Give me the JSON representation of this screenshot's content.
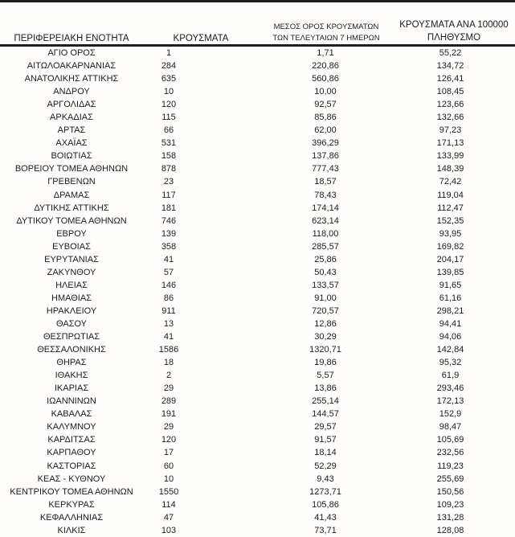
{
  "page": {
    "background_color": "#ffffff",
    "text_color": "#1b1b1b",
    "rule_color": "#1f1f1f"
  },
  "table": {
    "headers": {
      "region": "ΠΕΡΙΦΕΡΕΙΑΚΗ ΕΝΟΤΗΤΑ",
      "cases": "ΚΡΟΥΣΜΑΤΑ",
      "avg7_line1": "ΜΕΣΟΣ ΟΡΟΣ ΚΡΟΥΣΜΑΤΩΝ",
      "avg7_line2": "ΤΩΝ ΤΕΛΕΥΤΑΙΩΝ 7 ΗΜΕΡΩΝ",
      "per100k_line1": "ΚΡΟΥΣΜΑΤΑ ΑΝΑ 100000",
      "per100k_line2": "ΠΛΗΘΥΣΜΟ"
    },
    "rows": [
      {
        "region": "ΑΓΙΟ ΟΡΟΣ",
        "cases": "1",
        "avg7": "1,71",
        "per100k": "55,22"
      },
      {
        "region": "ΑΙΤΩΛΟΑΚΑΡΝΑΝΙΑΣ",
        "cases": "284",
        "avg7": "220,86",
        "per100k": "134,72"
      },
      {
        "region": "ΑΝΑΤΟΛΙΚΗΣ ΑΤΤΙΚΗΣ",
        "cases": "635",
        "avg7": "560,86",
        "per100k": "126,41"
      },
      {
        "region": "ΑΝΔΡΟΥ",
        "cases": "10",
        "avg7": "10,00",
        "per100k": "108,45"
      },
      {
        "region": "ΑΡΓΟΛΙΔΑΣ",
        "cases": "120",
        "avg7": "92,57",
        "per100k": "123,66"
      },
      {
        "region": "ΑΡΚΑΔΙΑΣ",
        "cases": "115",
        "avg7": "85,86",
        "per100k": "132,66"
      },
      {
        "region": "ΑΡΤΑΣ",
        "cases": "66",
        "avg7": "62,00",
        "per100k": "97,23"
      },
      {
        "region": "ΑΧΑΪΑΣ",
        "cases": "531",
        "avg7": "396,29",
        "per100k": "171,13"
      },
      {
        "region": "ΒΟΙΩΤΙΑΣ",
        "cases": "158",
        "avg7": "137,86",
        "per100k": "133,99"
      },
      {
        "region": "ΒΟΡΕΙΟΥ ΤΟΜΕΑ ΑΘΗΝΩΝ",
        "cases": "878",
        "avg7": "777,43",
        "per100k": "148,39"
      },
      {
        "region": "ΓΡΕΒΕΝΩΝ",
        "cases": "23",
        "avg7": "18,57",
        "per100k": "72,42"
      },
      {
        "region": "ΔΡΑΜΑΣ",
        "cases": "117",
        "avg7": "78,43",
        "per100k": "119,04"
      },
      {
        "region": "ΔΥΤΙΚΗΣ ΑΤΤΙΚΗΣ",
        "cases": "181",
        "avg7": "174,14",
        "per100k": "112,47"
      },
      {
        "region": "ΔΥΤΙΚΟΥ ΤΟΜΕΑ ΑΘΗΝΩΝ",
        "cases": "746",
        "avg7": "623,14",
        "per100k": "152,35"
      },
      {
        "region": "ΕΒΡΟΥ",
        "cases": "139",
        "avg7": "118,00",
        "per100k": "93,95"
      },
      {
        "region": "ΕΥΒΟΙΑΣ",
        "cases": "358",
        "avg7": "285,57",
        "per100k": "169,82"
      },
      {
        "region": "ΕΥΡΥΤΑΝΙΑΣ",
        "cases": "41",
        "avg7": "25,86",
        "per100k": "204,17"
      },
      {
        "region": "ΖΑΚΥΝΘΟΥ",
        "cases": "57",
        "avg7": "50,43",
        "per100k": "139,85"
      },
      {
        "region": "ΗΛΕΙΑΣ",
        "cases": "146",
        "avg7": "133,57",
        "per100k": "91,65"
      },
      {
        "region": "ΗΜΑΘΙΑΣ",
        "cases": "86",
        "avg7": "91,00",
        "per100k": "61,16"
      },
      {
        "region": "ΗΡΑΚΛΕΙΟΥ",
        "cases": "911",
        "avg7": "720,57",
        "per100k": "298,21"
      },
      {
        "region": "ΘΑΣΟΥ",
        "cases": "13",
        "avg7": "12,86",
        "per100k": "94,41"
      },
      {
        "region": "ΘΕΣΠΡΩΤΙΑΣ",
        "cases": "41",
        "avg7": "30,29",
        "per100k": "94,06"
      },
      {
        "region": "ΘΕΣΣΑΛΟΝΙΚΗΣ",
        "cases": "1586",
        "avg7": "1320,71",
        "per100k": "142,84"
      },
      {
        "region": "ΘΗΡΑΣ",
        "cases": "18",
        "avg7": "19,86",
        "per100k": "95,32"
      },
      {
        "region": "ΙΘΑΚΗΣ",
        "cases": "2",
        "avg7": "5,57",
        "per100k": "61,9"
      },
      {
        "region": "ΙΚΑΡΙΑΣ",
        "cases": "29",
        "avg7": "13,86",
        "per100k": "293,46"
      },
      {
        "region": "ΙΩΑΝΝΙΝΩΝ",
        "cases": "289",
        "avg7": "255,14",
        "per100k": "172,13"
      },
      {
        "region": "ΚΑΒΑΛΑΣ",
        "cases": "191",
        "avg7": "144,57",
        "per100k": "152,9"
      },
      {
        "region": "ΚΑΛΥΜΝΟΥ",
        "cases": "29",
        "avg7": "29,57",
        "per100k": "98,47"
      },
      {
        "region": "ΚΑΡΔΙΤΣΑΣ",
        "cases": "120",
        "avg7": "91,57",
        "per100k": "105,69"
      },
      {
        "region": "ΚΑΡΠΑΘΟΥ",
        "cases": "17",
        "avg7": "18,14",
        "per100k": "232,56"
      },
      {
        "region": "ΚΑΣΤΟΡΙΑΣ",
        "cases": "60",
        "avg7": "52,29",
        "per100k": "119,23"
      },
      {
        "region": "ΚΕΑΣ - ΚΥΘΝΟΥ",
        "cases": "10",
        "avg7": "9,43",
        "per100k": "255,69"
      },
      {
        "region": "ΚΕΝΤΡΙΚΟΥ ΤΟΜΕΑ ΑΘΗΝΩΝ",
        "cases": "1550",
        "avg7": "1273,71",
        "per100k": "150,56"
      },
      {
        "region": "ΚΕΡΚΥΡΑΣ",
        "cases": "114",
        "avg7": "105,86",
        "per100k": "109,23"
      },
      {
        "region": "ΚΕΦΑΛΛΗΝΙΑΣ",
        "cases": "47",
        "avg7": "41,43",
        "per100k": "131,28"
      },
      {
        "region": "ΚΙΛΚΙΣ",
        "cases": "103",
        "avg7": "73,71",
        "per100k": "128,08"
      }
    ]
  }
}
